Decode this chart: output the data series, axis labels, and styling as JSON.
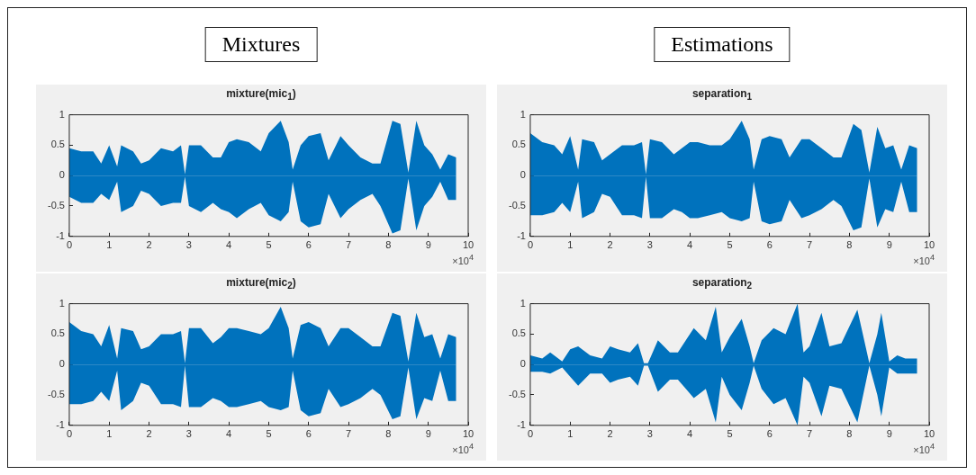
{
  "chart_data": [
    {
      "type": "area",
      "title": "mixture(mic$_{1}$)",
      "xlabel": "×10$^{4}$",
      "annotations": [
        "Mixtures"
      ],
      "xlim": [
        0,
        10
      ],
      "xticks": [
        0,
        1,
        2,
        3,
        4,
        5,
        6,
        7,
        8,
        9,
        10
      ],
      "ylim": [
        -1,
        1
      ],
      "yticks": [
        -1,
        -0.5,
        0,
        0.5,
        1
      ],
      "x": [
        0,
        0.3,
        0.6,
        0.8,
        1.0,
        1.2,
        1.3,
        1.6,
        1.8,
        2.0,
        2.3,
        2.6,
        2.8,
        2.9,
        3.0,
        3.3,
        3.6,
        3.8,
        4.0,
        4.2,
        4.5,
        4.8,
        5.0,
        5.3,
        5.5,
        5.6,
        5.8,
        6.0,
        6.3,
        6.5,
        6.8,
        7.0,
        7.3,
        7.6,
        7.8,
        8.1,
        8.3,
        8.5,
        8.7,
        8.9,
        9.1,
        9.3,
        9.5,
        9.7
      ],
      "series": [
        {
          "color": "#0072bd",
          "values": [
            0.45,
            0.4,
            0.4,
            0.2,
            0.5,
            0.15,
            0.5,
            0.4,
            0.2,
            0.25,
            0.45,
            0.4,
            0.5,
            0.02,
            0.5,
            0.5,
            0.3,
            0.3,
            0.55,
            0.6,
            0.55,
            0.4,
            0.7,
            0.9,
            0.55,
            0.1,
            0.5,
            0.65,
            0.7,
            0.25,
            0.65,
            0.5,
            0.3,
            0.2,
            0.2,
            0.9,
            0.85,
            0.05,
            0.9,
            0.5,
            0.35,
            0.1,
            0.35,
            0.3
          ]
        },
        {
          "color": "#0072bd",
          "values": [
            -0.35,
            -0.45,
            -0.45,
            -0.3,
            -0.4,
            -0.1,
            -0.6,
            -0.5,
            -0.25,
            -0.3,
            -0.5,
            -0.45,
            -0.45,
            -0.02,
            -0.5,
            -0.6,
            -0.45,
            -0.55,
            -0.6,
            -0.7,
            -0.55,
            -0.45,
            -0.65,
            -0.75,
            -0.6,
            -0.1,
            -0.75,
            -0.85,
            -0.8,
            -0.3,
            -0.7,
            -0.55,
            -0.4,
            -0.3,
            -0.5,
            -0.95,
            -0.9,
            -0.05,
            -0.9,
            -0.5,
            -0.35,
            -0.1,
            -0.4,
            -0.4
          ]
        }
      ]
    },
    {
      "type": "area",
      "title": "separation$_{1}$",
      "xlabel": "×10$^{4}$",
      "annotations": [
        "Estimations"
      ],
      "xlim": [
        0,
        10
      ],
      "xticks": [
        0,
        1,
        2,
        3,
        4,
        5,
        6,
        7,
        8,
        9,
        10
      ],
      "ylim": [
        -1,
        1
      ],
      "yticks": [
        -1,
        -0.5,
        0,
        0.5,
        1
      ],
      "x": [
        0,
        0.3,
        0.6,
        0.8,
        1.0,
        1.2,
        1.3,
        1.6,
        1.8,
        2.0,
        2.3,
        2.6,
        2.8,
        2.9,
        3.0,
        3.3,
        3.6,
        3.8,
        4.0,
        4.2,
        4.5,
        4.8,
        5.0,
        5.3,
        5.5,
        5.6,
        5.8,
        6.0,
        6.3,
        6.5,
        6.8,
        7.0,
        7.3,
        7.6,
        7.8,
        8.1,
        8.3,
        8.5,
        8.7,
        8.9,
        9.1,
        9.3,
        9.5,
        9.7
      ],
      "series": [
        {
          "color": "#0072bd",
          "values": [
            0.7,
            0.55,
            0.5,
            0.35,
            0.65,
            0.1,
            0.6,
            0.55,
            0.25,
            0.35,
            0.5,
            0.5,
            0.55,
            0.02,
            0.6,
            0.55,
            0.35,
            0.45,
            0.55,
            0.55,
            0.5,
            0.5,
            0.6,
            0.9,
            0.6,
            0.1,
            0.6,
            0.65,
            0.6,
            0.3,
            0.6,
            0.6,
            0.45,
            0.3,
            0.3,
            0.85,
            0.75,
            0.05,
            0.8,
            0.45,
            0.5,
            0.1,
            0.5,
            0.45
          ]
        },
        {
          "color": "#0072bd",
          "values": [
            -0.65,
            -0.65,
            -0.6,
            -0.45,
            -0.6,
            -0.1,
            -0.7,
            -0.6,
            -0.3,
            -0.35,
            -0.65,
            -0.65,
            -0.7,
            -0.02,
            -0.7,
            -0.7,
            -0.55,
            -0.6,
            -0.7,
            -0.7,
            -0.65,
            -0.6,
            -0.7,
            -0.75,
            -0.7,
            -0.1,
            -0.75,
            -0.8,
            -0.75,
            -0.4,
            -0.7,
            -0.65,
            -0.55,
            -0.4,
            -0.5,
            -0.9,
            -0.85,
            -0.05,
            -0.85,
            -0.55,
            -0.6,
            -0.1,
            -0.6,
            -0.6
          ]
        }
      ]
    },
    {
      "type": "area",
      "title": "mixture(mic$_{2}$)",
      "xlabel": "×10$^{4}$",
      "xlim": [
        0,
        10
      ],
      "xticks": [
        0,
        1,
        2,
        3,
        4,
        5,
        6,
        7,
        8,
        9,
        10
      ],
      "ylim": [
        -1,
        1
      ],
      "yticks": [
        -1,
        -0.5,
        0,
        0.5,
        1
      ],
      "x": [
        0,
        0.3,
        0.6,
        0.8,
        1.0,
        1.2,
        1.3,
        1.6,
        1.8,
        2.0,
        2.3,
        2.6,
        2.8,
        2.9,
        3.0,
        3.3,
        3.6,
        3.8,
        4.0,
        4.2,
        4.5,
        4.8,
        5.0,
        5.3,
        5.5,
        5.6,
        5.8,
        6.0,
        6.3,
        6.5,
        6.8,
        7.0,
        7.3,
        7.6,
        7.8,
        8.1,
        8.3,
        8.5,
        8.7,
        8.9,
        9.1,
        9.3,
        9.5,
        9.7
      ],
      "series": [
        {
          "color": "#0072bd",
          "values": [
            0.7,
            0.55,
            0.5,
            0.3,
            0.65,
            0.1,
            0.6,
            0.55,
            0.25,
            0.3,
            0.5,
            0.5,
            0.55,
            0.02,
            0.6,
            0.6,
            0.35,
            0.45,
            0.6,
            0.6,
            0.55,
            0.5,
            0.6,
            0.95,
            0.6,
            0.1,
            0.65,
            0.7,
            0.6,
            0.3,
            0.6,
            0.6,
            0.45,
            0.3,
            0.3,
            0.85,
            0.8,
            0.05,
            0.85,
            0.45,
            0.5,
            0.1,
            0.5,
            0.45
          ]
        },
        {
          "color": "#0072bd",
          "values": [
            -0.65,
            -0.65,
            -0.6,
            -0.45,
            -0.6,
            -0.1,
            -0.75,
            -0.6,
            -0.3,
            -0.35,
            -0.65,
            -0.65,
            -0.7,
            -0.02,
            -0.7,
            -0.7,
            -0.55,
            -0.6,
            -0.7,
            -0.7,
            -0.65,
            -0.6,
            -0.7,
            -0.75,
            -0.7,
            -0.1,
            -0.75,
            -0.85,
            -0.8,
            -0.4,
            -0.7,
            -0.65,
            -0.55,
            -0.4,
            -0.5,
            -0.9,
            -0.85,
            -0.05,
            -0.9,
            -0.55,
            -0.6,
            -0.1,
            -0.6,
            -0.6
          ]
        }
      ]
    },
    {
      "type": "area",
      "title": "separation$_{2}$",
      "xlabel": "×10$^{4}$",
      "xlim": [
        0,
        10
      ],
      "xticks": [
        0,
        1,
        2,
        3,
        4,
        5,
        6,
        7,
        8,
        9,
        10
      ],
      "ylim": [
        -1,
        1
      ],
      "yticks": [
        -1,
        -0.5,
        0,
        0.5,
        1
      ],
      "x": [
        0,
        0.3,
        0.5,
        0.8,
        1.0,
        1.2,
        1.5,
        1.8,
        2.0,
        2.2,
        2.5,
        2.7,
        2.85,
        2.95,
        3.2,
        3.5,
        3.7,
        4.1,
        4.4,
        4.65,
        4.8,
        5.0,
        5.3,
        5.5,
        5.6,
        5.8,
        6.1,
        6.4,
        6.7,
        6.85,
        7.0,
        7.3,
        7.5,
        7.8,
        8.2,
        8.5,
        8.7,
        8.8,
        9.0,
        9.2,
        9.4,
        9.7
      ],
      "series": [
        {
          "color": "#0072bd",
          "values": [
            0.15,
            0.1,
            0.2,
            0.05,
            0.25,
            0.3,
            0.15,
            0.1,
            0.3,
            0.25,
            0.2,
            0.35,
            0.02,
            0.02,
            0.4,
            0.2,
            0.2,
            0.6,
            0.4,
            0.95,
            0.2,
            0.45,
            0.75,
            0.3,
            0.02,
            0.4,
            0.6,
            0.5,
            1.0,
            0.2,
            0.3,
            0.85,
            0.3,
            0.35,
            0.9,
            0.02,
            0.5,
            0.85,
            0.05,
            0.15,
            0.1,
            0.1
          ]
        },
        {
          "color": "#0072bd",
          "values": [
            -0.12,
            -0.12,
            -0.15,
            -0.05,
            -0.2,
            -0.35,
            -0.15,
            -0.15,
            -0.3,
            -0.25,
            -0.2,
            -0.35,
            -0.02,
            -0.02,
            -0.45,
            -0.25,
            -0.25,
            -0.55,
            -0.4,
            -0.95,
            -0.2,
            -0.5,
            -0.75,
            -0.3,
            -0.02,
            -0.4,
            -0.65,
            -0.55,
            -1.0,
            -0.2,
            -0.3,
            -0.85,
            -0.35,
            -0.4,
            -0.95,
            -0.02,
            -0.5,
            -0.85,
            -0.05,
            -0.15,
            -0.15,
            -0.15
          ]
        }
      ]
    }
  ]
}
